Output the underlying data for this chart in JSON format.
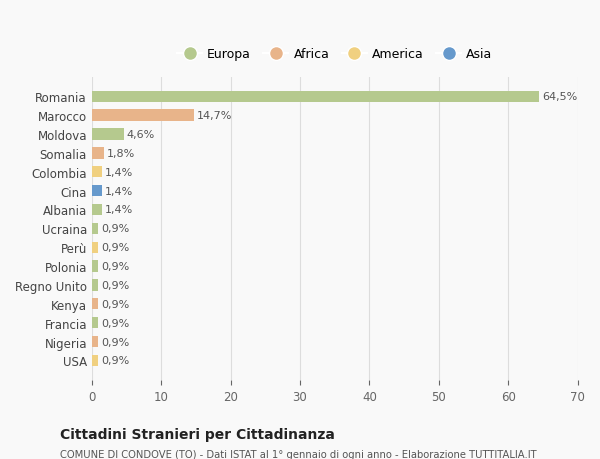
{
  "countries": [
    "Romania",
    "Marocco",
    "Moldova",
    "Somalia",
    "Colombia",
    "Cina",
    "Albania",
    "Ucraina",
    "Perù",
    "Polonia",
    "Regno Unito",
    "Kenya",
    "Francia",
    "Nigeria",
    "USA"
  ],
  "values": [
    64.5,
    14.7,
    4.6,
    1.8,
    1.4,
    1.4,
    1.4,
    0.9,
    0.9,
    0.9,
    0.9,
    0.9,
    0.9,
    0.9,
    0.9
  ],
  "labels": [
    "64,5%",
    "14,7%",
    "4,6%",
    "1,8%",
    "1,4%",
    "1,4%",
    "1,4%",
    "0,9%",
    "0,9%",
    "0,9%",
    "0,9%",
    "0,9%",
    "0,9%",
    "0,9%",
    "0,9%"
  ],
  "colors": [
    "#b5c98e",
    "#e8b48a",
    "#b5c98e",
    "#e8b48a",
    "#f0d080",
    "#6699cc",
    "#b5c98e",
    "#b5c98e",
    "#f0d080",
    "#b5c98e",
    "#b5c98e",
    "#e8b48a",
    "#b5c98e",
    "#e8b48a",
    "#f0d080"
  ],
  "legend_labels": [
    "Europa",
    "Africa",
    "America",
    "Asia"
  ],
  "legend_colors": [
    "#b5c98e",
    "#e8b48a",
    "#f0d080",
    "#6699cc"
  ],
  "title": "Cittadini Stranieri per Cittadinanza",
  "subtitle": "COMUNE DI CONDOVE (TO) - Dati ISTAT al 1° gennaio di ogni anno - Elaborazione TUTTITALIA.IT",
  "xlim": [
    0,
    70
  ],
  "xticks": [
    0,
    10,
    20,
    30,
    40,
    50,
    60,
    70
  ],
  "bg_color": "#f9f9f9",
  "grid_color": "#dddddd",
  "bar_height": 0.6
}
